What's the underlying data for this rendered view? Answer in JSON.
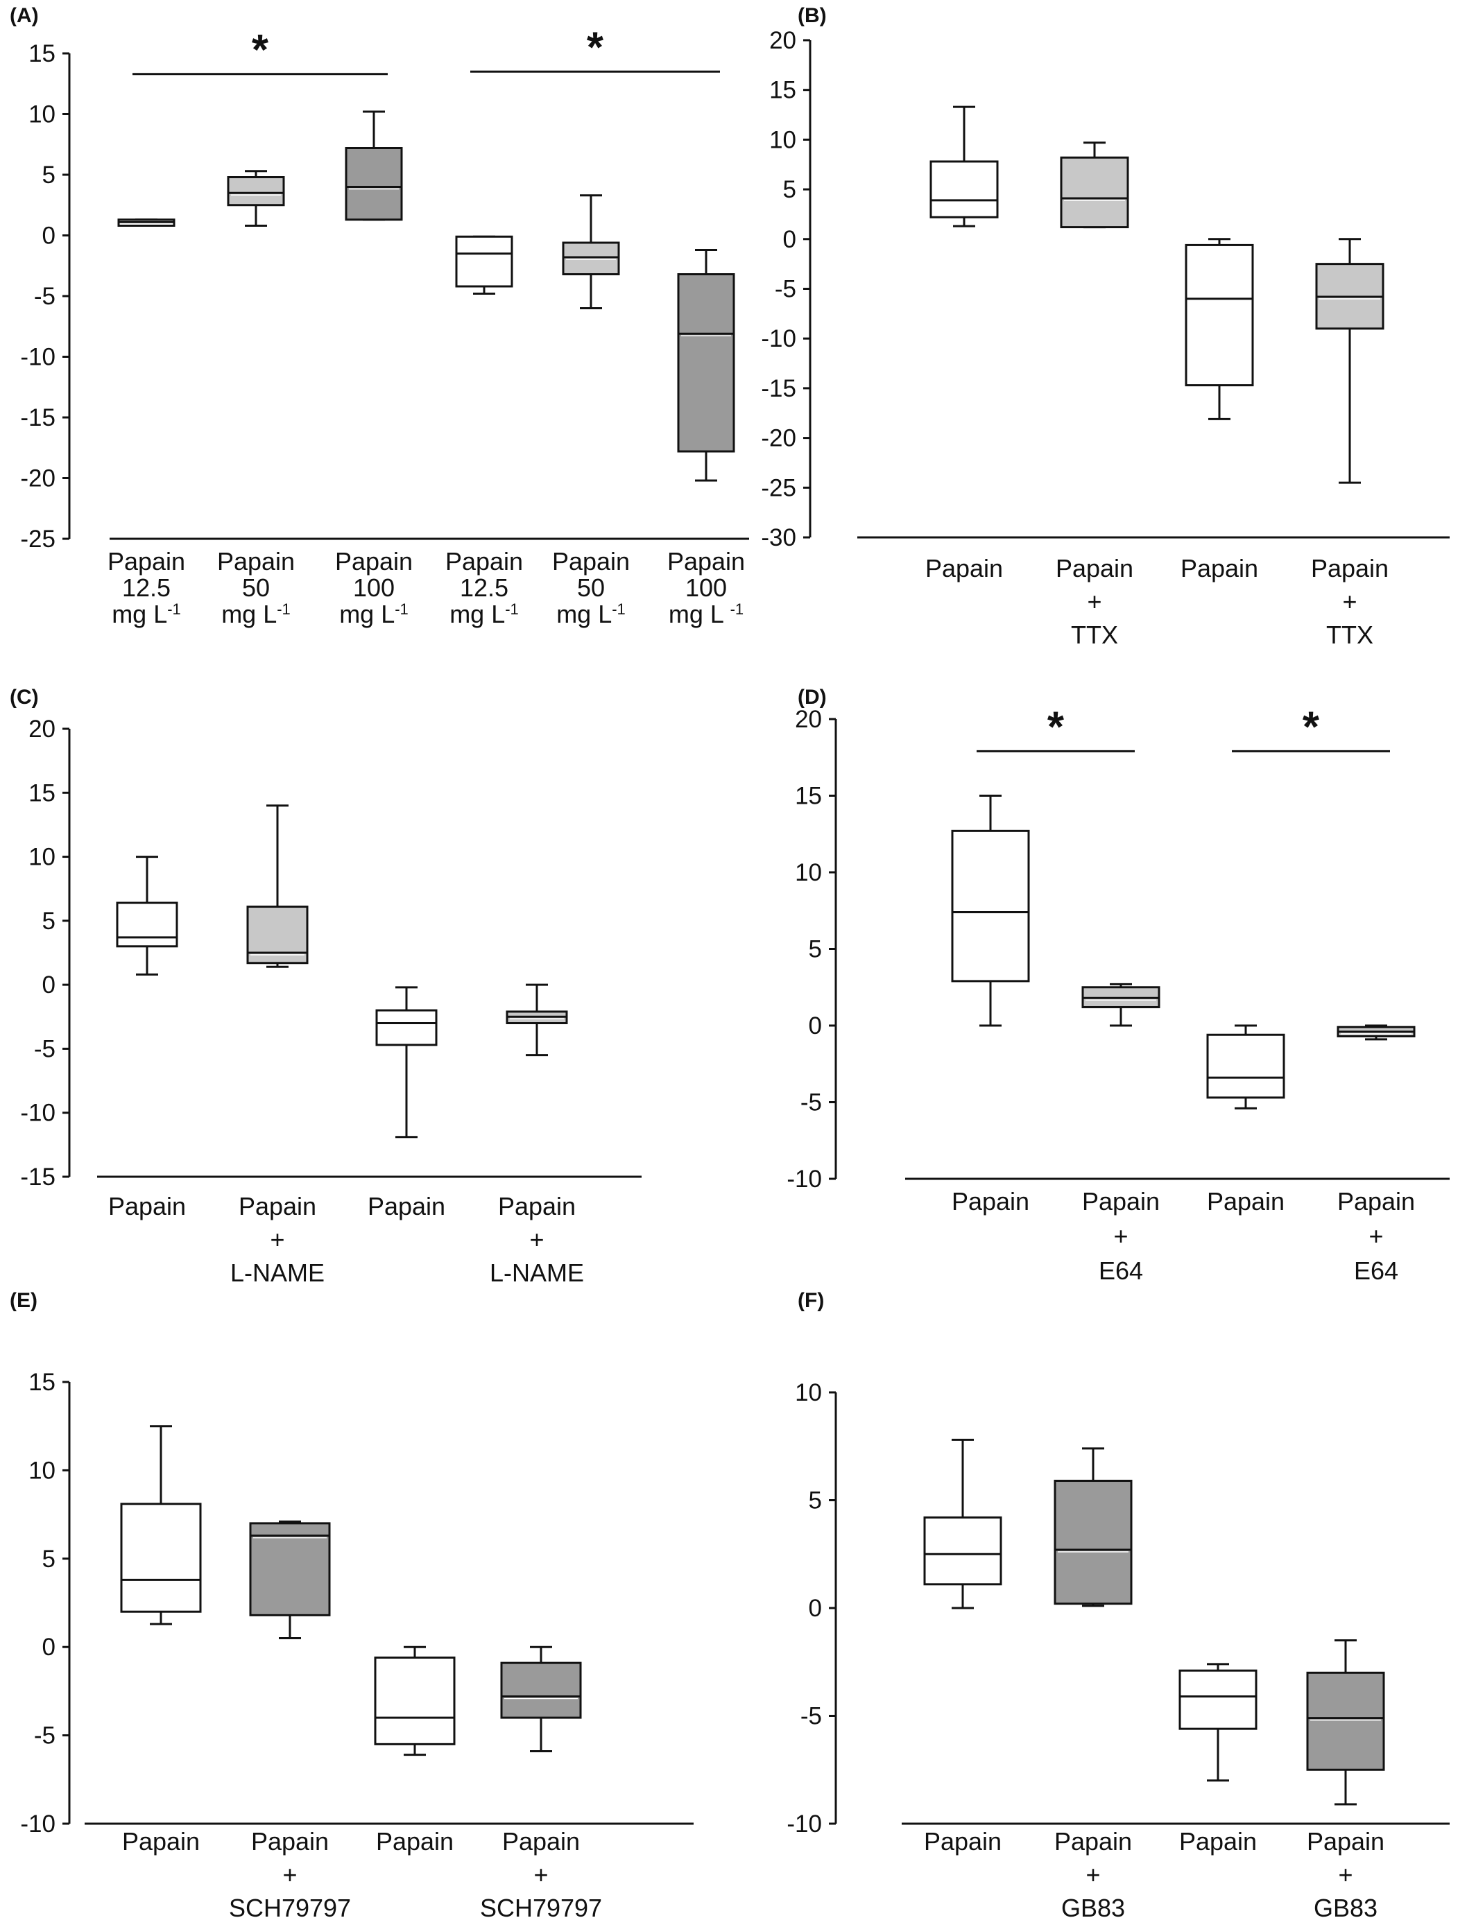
{
  "colors": {
    "white": "#ffffff",
    "light_gray": "#c8c8c8",
    "dark_gray": "#9a9a9a",
    "line": "#111111"
  },
  "chart_data": [
    {
      "panel": "(A)",
      "type": "box",
      "ylim": [
        -25,
        15
      ],
      "yticks": [
        15,
        10,
        5,
        0,
        -5,
        -10,
        -15,
        -20,
        -25
      ],
      "categories": [
        [
          "Papain",
          "12.5",
          "mg L-1"
        ],
        [
          "Papain",
          "50",
          "mg L-1"
        ],
        [
          "Papain",
          "100",
          "mg L-1"
        ],
        [
          "Papain",
          "12.5",
          "mg L-1"
        ],
        [
          "Papain",
          "50",
          "mg L-1"
        ],
        [
          "Papain",
          "100",
          "mg L -1"
        ]
      ],
      "boxes": [
        {
          "whisker_low": 0.8,
          "q1": 0.8,
          "median": 1.1,
          "q3": 1.3,
          "whisker_high": 1.3,
          "fill": "white"
        },
        {
          "whisker_low": 0.8,
          "q1": 2.5,
          "median": 3.5,
          "q3": 4.8,
          "whisker_high": 5.3,
          "fill": "light_gray"
        },
        {
          "whisker_low": 1.3,
          "q1": 1.3,
          "median": 4.0,
          "q3": 7.2,
          "whisker_high": 10.2,
          "fill": "dark_gray"
        },
        {
          "whisker_low": -4.8,
          "q1": -4.2,
          "median": -1.5,
          "q3": -0.1,
          "whisker_high": -0.1,
          "fill": "white"
        },
        {
          "whisker_low": -6.0,
          "q1": -3.2,
          "median": -1.8,
          "q3": -0.6,
          "whisker_high": 3.3,
          "fill": "light_gray"
        },
        {
          "whisker_low": -20.2,
          "q1": -17.8,
          "median": -8.1,
          "q3": -3.2,
          "whisker_high": -1.2,
          "fill": "dark_gray"
        }
      ],
      "significance": [
        {
          "from": 0,
          "to": 2,
          "y": 13.3,
          "label": "*"
        },
        {
          "from": 3,
          "to": 5,
          "y": 13.5,
          "label": "*"
        }
      ]
    },
    {
      "panel": "(B)",
      "type": "box",
      "ylim": [
        -30,
        20
      ],
      "yticks": [
        20,
        15,
        10,
        5,
        0,
        -5,
        -10,
        -15,
        -20,
        -25,
        -30
      ],
      "categories": [
        [
          "Papain"
        ],
        [
          "Papain",
          "+",
          "TTX"
        ],
        [
          "Papain"
        ],
        [
          "Papain",
          "+",
          "TTX"
        ]
      ],
      "boxes": [
        {
          "whisker_low": 1.3,
          "q1": 2.2,
          "median": 3.9,
          "q3": 7.8,
          "whisker_high": 13.3,
          "fill": "white"
        },
        {
          "whisker_low": 1.2,
          "q1": 1.2,
          "median": 4.1,
          "q3": 8.2,
          "whisker_high": 9.7,
          "fill": "light_gray"
        },
        {
          "whisker_low": -18.1,
          "q1": -14.7,
          "median": -6.0,
          "q3": -0.6,
          "whisker_high": 0,
          "fill": "white"
        },
        {
          "whisker_low": -24.5,
          "q1": -9.0,
          "median": -5.8,
          "q3": -2.5,
          "whisker_high": 0,
          "fill": "light_gray"
        }
      ],
      "significance": []
    },
    {
      "panel": "(C)",
      "type": "box",
      "ylim": [
        -15,
        20
      ],
      "yticks": [
        20,
        15,
        10,
        5,
        0,
        -5,
        -10,
        -15
      ],
      "categories": [
        [
          "Papain"
        ],
        [
          "Papain",
          "+",
          "L-NAME"
        ],
        [
          "Papain"
        ],
        [
          "Papain",
          "+",
          "L-NAME"
        ]
      ],
      "boxes": [
        {
          "whisker_low": 0.8,
          "q1": 3.0,
          "median": 3.7,
          "q3": 6.4,
          "whisker_high": 10.0,
          "fill": "white"
        },
        {
          "whisker_low": 1.4,
          "q1": 1.7,
          "median": 2.5,
          "q3": 6.1,
          "whisker_high": 14.0,
          "fill": "light_gray"
        },
        {
          "whisker_low": -11.9,
          "q1": -4.7,
          "median": -3.0,
          "q3": -2.0,
          "whisker_high": -0.2,
          "fill": "white"
        },
        {
          "whisker_low": -5.5,
          "q1": -3.0,
          "median": -2.5,
          "q3": -2.1,
          "whisker_high": 0,
          "fill": "light_gray"
        }
      ],
      "significance": []
    },
    {
      "panel": "(D)",
      "type": "box",
      "ylim": [
        -10,
        20
      ],
      "yticks": [
        20,
        15,
        10,
        5,
        0,
        -5,
        -10
      ],
      "categories": [
        [
          "Papain"
        ],
        [
          "Papain",
          "+",
          "E64"
        ],
        [
          "Papain"
        ],
        [
          "Papain",
          "+",
          "E64"
        ]
      ],
      "boxes": [
        {
          "whisker_low": 0,
          "q1": 2.9,
          "median": 7.4,
          "q3": 12.7,
          "whisker_high": 15.0,
          "fill": "white"
        },
        {
          "whisker_low": 0,
          "q1": 1.2,
          "median": 1.8,
          "q3": 2.5,
          "whisker_high": 2.7,
          "fill": "light_gray"
        },
        {
          "whisker_low": -5.4,
          "q1": -4.7,
          "median": -3.4,
          "q3": -0.6,
          "whisker_high": 0,
          "fill": "white"
        },
        {
          "whisker_low": -0.9,
          "q1": -0.7,
          "median": -0.4,
          "q3": -0.1,
          "whisker_high": 0,
          "fill": "light_gray"
        }
      ],
      "significance": [
        {
          "from": 0,
          "to": 1,
          "y": 17.9,
          "label": "*"
        },
        {
          "from": 2,
          "to": 3,
          "y": 17.9,
          "label": "*"
        }
      ]
    },
    {
      "panel": "(E)",
      "type": "box",
      "ylim": [
        -10,
        15
      ],
      "yticks": [
        15,
        10,
        5,
        0,
        -5,
        -10
      ],
      "categories": [
        [
          "Papain"
        ],
        [
          "Papain",
          "+",
          "SCH79797"
        ],
        [
          "Papain"
        ],
        [
          "Papain",
          "+",
          "SCH79797"
        ]
      ],
      "boxes": [
        {
          "whisker_low": 1.3,
          "q1": 2.0,
          "median": 3.8,
          "q3": 8.1,
          "whisker_high": 12.5,
          "fill": "white"
        },
        {
          "whisker_low": 0.5,
          "q1": 1.8,
          "median": 6.3,
          "q3": 7.0,
          "whisker_high": 7.1,
          "fill": "dark_gray"
        },
        {
          "whisker_low": -6.1,
          "q1": -5.5,
          "median": -4.0,
          "q3": -0.6,
          "whisker_high": 0,
          "fill": "white"
        },
        {
          "whisker_low": -5.9,
          "q1": -4.0,
          "median": -2.8,
          "q3": -0.9,
          "whisker_high": 0,
          "fill": "dark_gray"
        }
      ],
      "significance": []
    },
    {
      "panel": "(F)",
      "type": "box",
      "ylim": [
        -10,
        10
      ],
      "yticks": [
        10,
        5,
        0,
        -5,
        -10
      ],
      "categories": [
        [
          "Papain"
        ],
        [
          "Papain",
          "+",
          "GB83"
        ],
        [
          "Papain"
        ],
        [
          "Papain",
          "+",
          "GB83"
        ]
      ],
      "boxes": [
        {
          "whisker_low": 0,
          "q1": 1.1,
          "median": 2.5,
          "q3": 4.2,
          "whisker_high": 7.8,
          "fill": "white"
        },
        {
          "whisker_low": 0.1,
          "q1": 0.2,
          "median": 2.7,
          "q3": 5.9,
          "whisker_high": 7.4,
          "fill": "dark_gray"
        },
        {
          "whisker_low": -8.0,
          "q1": -5.6,
          "median": -4.1,
          "q3": -2.9,
          "whisker_high": -2.6,
          "fill": "white"
        },
        {
          "whisker_low": -9.1,
          "q1": -7.5,
          "median": -5.1,
          "q3": -3.0,
          "whisker_high": -1.5,
          "fill": "dark_gray"
        }
      ],
      "significance": []
    }
  ]
}
